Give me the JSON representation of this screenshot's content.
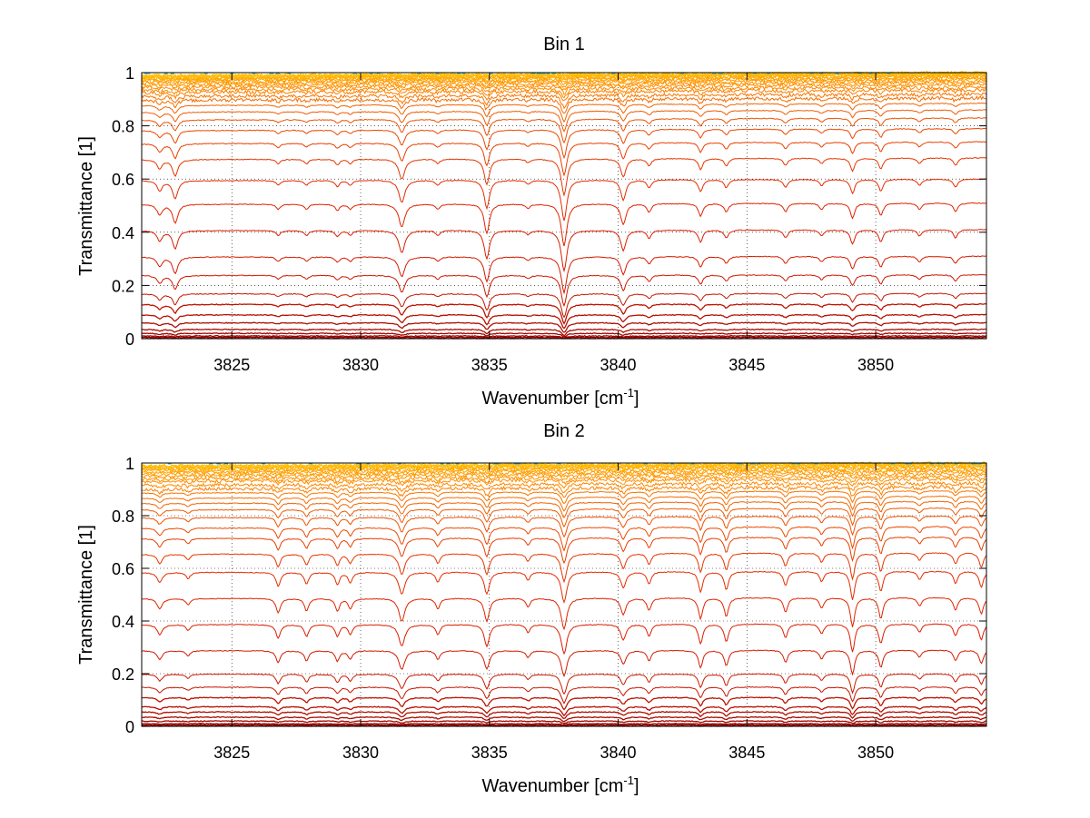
{
  "chart_data": [
    {
      "type": "line",
      "title": "Bin 1",
      "xlabel_main": "Wavenumber [cm",
      "xlabel_sup": "-1",
      "xlabel_end": "]",
      "ylabel": "Transmittance [1]",
      "xlim": [
        3821.5,
        3854.3
      ],
      "ylim": [
        0,
        1
      ],
      "xticks": [
        3825,
        3830,
        3835,
        3840,
        3845,
        3850
      ],
      "xtick_labels": [
        "3825",
        "3830",
        "3835",
        "3840",
        "3845",
        "3850"
      ],
      "yticks": [
        0,
        0.2,
        0.4,
        0.6,
        0.8,
        1
      ],
      "ytick_labels": [
        "0",
        "0.2",
        "0.4",
        "0.6",
        "0.8",
        "1"
      ],
      "grid": true,
      "series_count": 36,
      "series_levels": [
        0.0,
        0.005,
        0.01,
        0.02,
        0.035,
        0.06,
        0.09,
        0.13,
        0.17,
        0.24,
        0.31,
        0.41,
        0.51,
        0.6,
        0.68,
        0.74,
        0.79,
        0.83,
        0.86,
        0.885,
        0.905,
        0.92,
        0.935,
        0.945,
        0.955,
        0.963,
        0.97,
        0.976,
        0.981,
        0.985,
        0.989,
        0.992,
        0.994,
        0.996,
        0.998,
        0.999
      ],
      "absorption_lines": [
        {
          "x": 3822.2,
          "depth": 0.25,
          "width": 0.12
        },
        {
          "x": 3822.8,
          "depth": 0.45,
          "width": 0.12
        },
        {
          "x": 3826.8,
          "depth": 0.12,
          "width": 0.1
        },
        {
          "x": 3827.9,
          "depth": 0.12,
          "width": 0.1
        },
        {
          "x": 3829.1,
          "depth": 0.15,
          "width": 0.1
        },
        {
          "x": 3829.6,
          "depth": 0.12,
          "width": 0.1
        },
        {
          "x": 3831.6,
          "depth": 0.55,
          "width": 0.14
        },
        {
          "x": 3833.0,
          "depth": 0.12,
          "width": 0.1
        },
        {
          "x": 3834.9,
          "depth": 0.7,
          "width": 0.12
        },
        {
          "x": 3836.5,
          "depth": 0.1,
          "width": 0.1
        },
        {
          "x": 3837.9,
          "depth": 1.0,
          "width": 0.13
        },
        {
          "x": 3840.2,
          "depth": 0.5,
          "width": 0.12
        },
        {
          "x": 3841.2,
          "depth": 0.2,
          "width": 0.1
        },
        {
          "x": 3843.2,
          "depth": 0.3,
          "width": 0.1
        },
        {
          "x": 3844.2,
          "depth": 0.2,
          "width": 0.1
        },
        {
          "x": 3846.5,
          "depth": 0.2,
          "width": 0.1
        },
        {
          "x": 3847.9,
          "depth": 0.15,
          "width": 0.1
        },
        {
          "x": 3849.1,
          "depth": 0.35,
          "width": 0.1
        },
        {
          "x": 3850.2,
          "depth": 0.3,
          "width": 0.1
        },
        {
          "x": 3851.7,
          "depth": 0.15,
          "width": 0.1
        },
        {
          "x": 3853.1,
          "depth": 0.2,
          "width": 0.1
        }
      ],
      "line_colors": [
        "#8b0000",
        "#e02000",
        "#ff8c00",
        "#ffc000",
        "#2ab0d0"
      ]
    },
    {
      "type": "line",
      "title": "Bin 2",
      "xlabel_main": "Wavenumber [cm",
      "xlabel_sup": "-1",
      "xlabel_end": "]",
      "ylabel": "Transmittance [1]",
      "xlim": [
        3821.5,
        3854.3
      ],
      "ylim": [
        0,
        1
      ],
      "xticks": [
        3825,
        3830,
        3835,
        3840,
        3845,
        3850
      ],
      "xtick_labels": [
        "3825",
        "3830",
        "3835",
        "3840",
        "3845",
        "3850"
      ],
      "yticks": [
        0,
        0.2,
        0.4,
        0.6,
        0.8,
        1
      ],
      "ytick_labels": [
        "0",
        "0.2",
        "0.4",
        "0.6",
        "0.8",
        "1"
      ],
      "grid": true,
      "series_count": 36,
      "series_levels": [
        0.0,
        0.005,
        0.01,
        0.02,
        0.035,
        0.055,
        0.075,
        0.11,
        0.15,
        0.2,
        0.29,
        0.39,
        0.49,
        0.59,
        0.66,
        0.72,
        0.76,
        0.8,
        0.83,
        0.855,
        0.875,
        0.895,
        0.91,
        0.925,
        0.94,
        0.95,
        0.96,
        0.968,
        0.975,
        0.981,
        0.986,
        0.99,
        0.993,
        0.996,
        0.998,
        0.999
      ],
      "absorption_lines": [
        {
          "x": 3822.2,
          "depth": 0.25,
          "width": 0.12
        },
        {
          "x": 3823.3,
          "depth": 0.15,
          "width": 0.1
        },
        {
          "x": 3826.8,
          "depth": 0.35,
          "width": 0.1
        },
        {
          "x": 3827.9,
          "depth": 0.3,
          "width": 0.1
        },
        {
          "x": 3829.1,
          "depth": 0.3,
          "width": 0.1
        },
        {
          "x": 3829.6,
          "depth": 0.25,
          "width": 0.1
        },
        {
          "x": 3831.6,
          "depth": 0.55,
          "width": 0.14
        },
        {
          "x": 3833.0,
          "depth": 0.25,
          "width": 0.1
        },
        {
          "x": 3834.9,
          "depth": 0.55,
          "width": 0.12
        },
        {
          "x": 3836.5,
          "depth": 0.2,
          "width": 0.1
        },
        {
          "x": 3837.9,
          "depth": 0.75,
          "width": 0.13
        },
        {
          "x": 3840.2,
          "depth": 0.4,
          "width": 0.12
        },
        {
          "x": 3841.2,
          "depth": 0.3,
          "width": 0.1
        },
        {
          "x": 3843.2,
          "depth": 0.5,
          "width": 0.1
        },
        {
          "x": 3844.2,
          "depth": 0.45,
          "width": 0.1
        },
        {
          "x": 3846.5,
          "depth": 0.35,
          "width": 0.1
        },
        {
          "x": 3847.9,
          "depth": 0.25,
          "width": 0.1
        },
        {
          "x": 3849.1,
          "depth": 0.7,
          "width": 0.1
        },
        {
          "x": 3850.2,
          "depth": 0.5,
          "width": 0.1
        },
        {
          "x": 3851.7,
          "depth": 0.2,
          "width": 0.1
        },
        {
          "x": 3853.1,
          "depth": 0.3,
          "width": 0.1
        },
        {
          "x": 3854.1,
          "depth": 0.4,
          "width": 0.1
        }
      ],
      "line_colors": [
        "#8b0000",
        "#e02000",
        "#ff8c00",
        "#ffc000",
        "#2ab0d0"
      ]
    }
  ]
}
